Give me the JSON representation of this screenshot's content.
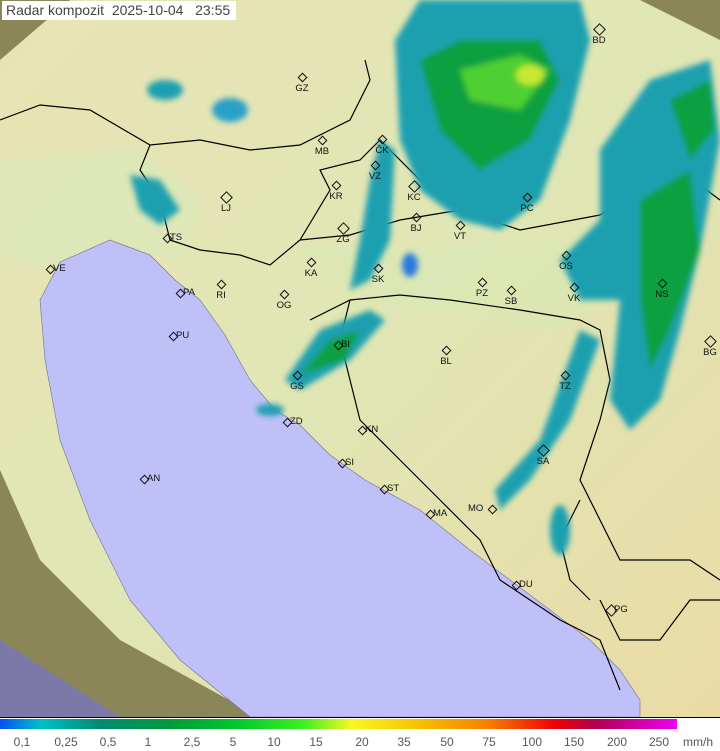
{
  "title": "Radar kompozit  2025-10-04   23:55",
  "cities": [
    "GZ",
    "MB",
    "LJ",
    "TS",
    "VE",
    "RI",
    "PA",
    "PU",
    "KR",
    "ZG",
    "KA",
    "OG",
    "SK",
    "ČK",
    "VZ",
    "KC",
    "BJ",
    "VT",
    "PC",
    "PZ",
    "SB",
    "OS",
    "VK",
    "NS",
    "BG",
    "BI",
    "GS",
    "BL",
    "TZ",
    "ZD",
    "KN",
    "SI",
    "SA",
    "AN",
    "ST",
    "MO",
    "MA",
    "DU",
    "PG",
    "BD"
  ],
  "legend": {
    "ticks": [
      "0,1",
      "0,25",
      "0,5",
      "1",
      "2,5",
      "5",
      "10",
      "15",
      "20",
      "35",
      "50",
      "75",
      "100",
      "150",
      "200",
      "250"
    ],
    "unit": "mm/h"
  },
  "colors": {
    "sea": "#c0c0f8",
    "land": "#e8e4b0",
    "outside": "#8c8a5c",
    "rain_light": "#1fa0b0",
    "rain_mid": "#10a040",
    "rain_heavy": "#60e020"
  }
}
